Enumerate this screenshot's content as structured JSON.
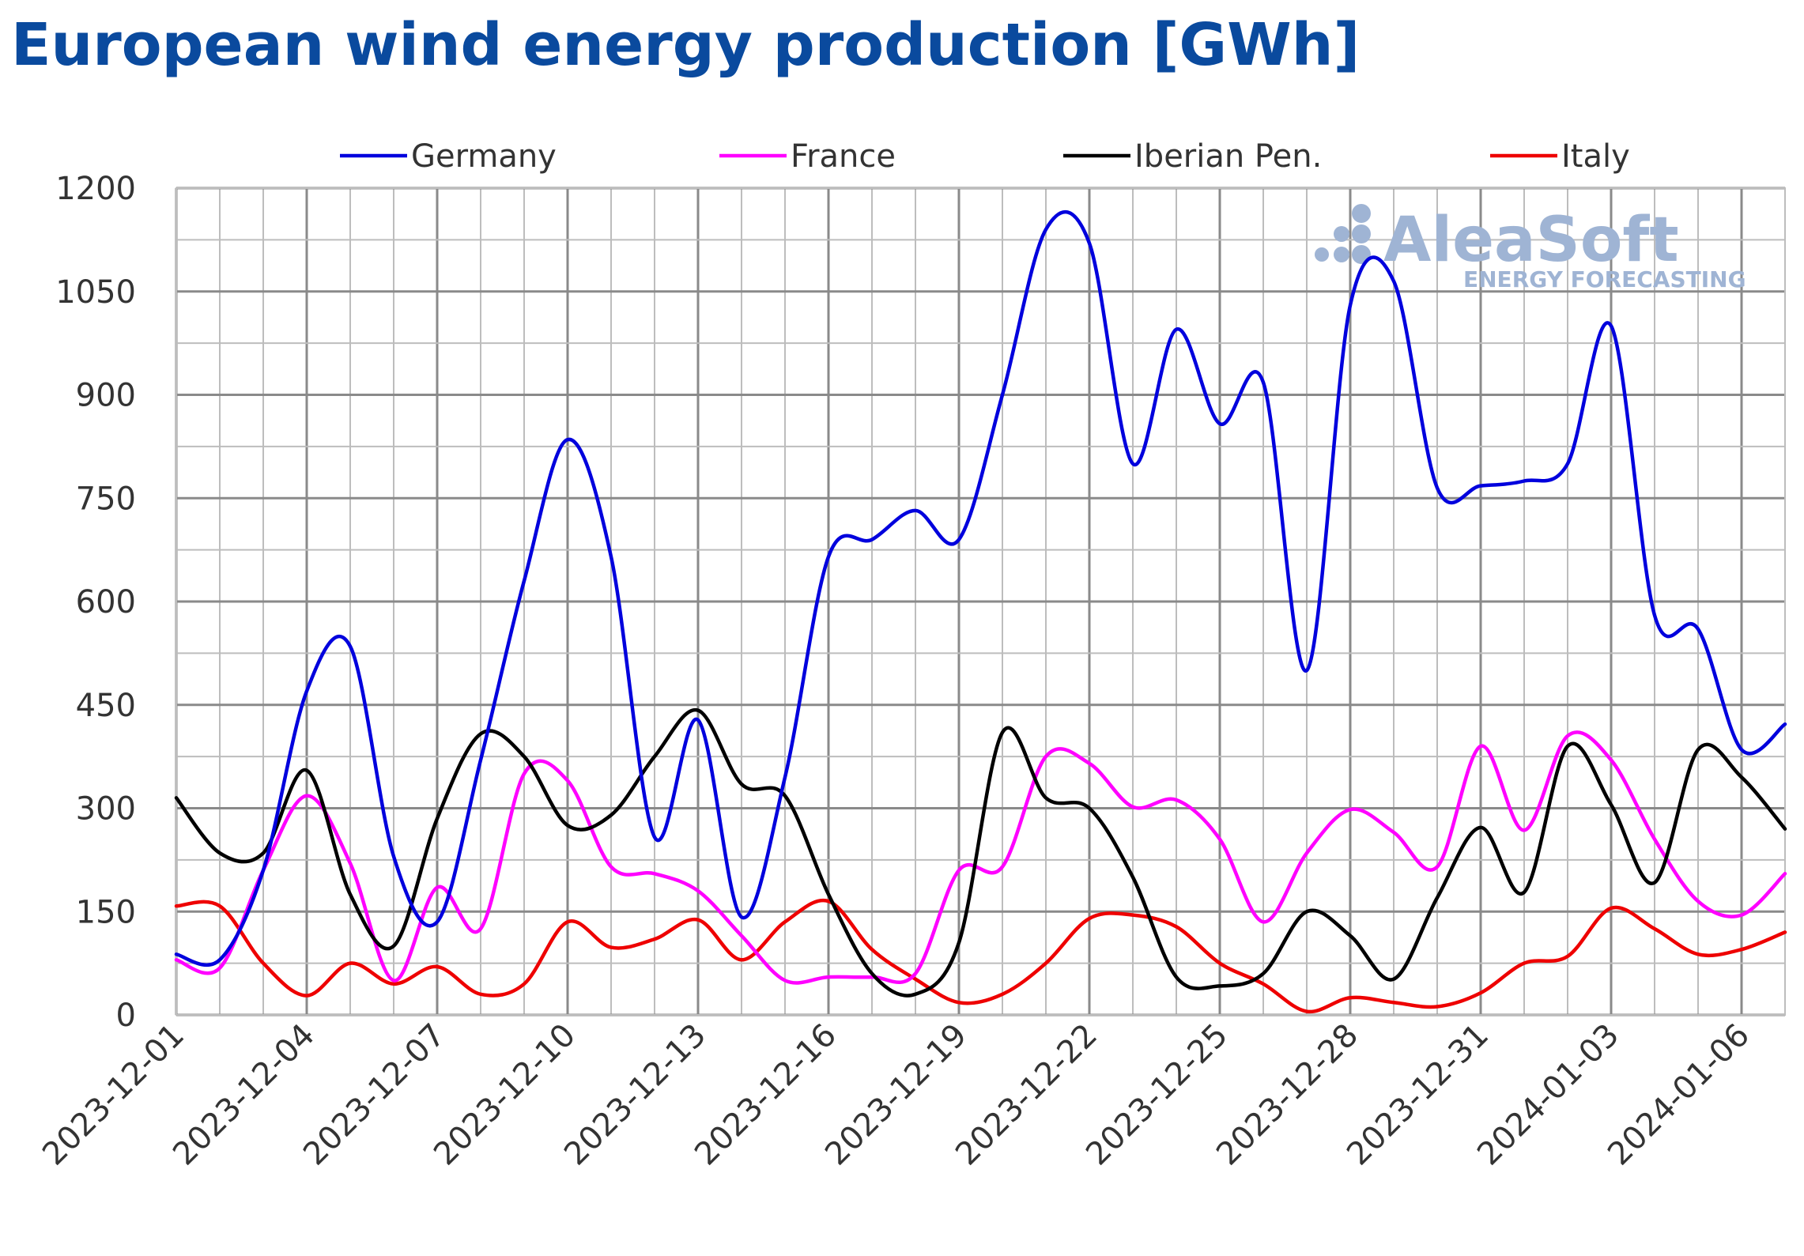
{
  "chart_data": {
    "type": "line",
    "title": "European wind energy production [GWh]",
    "xlabel": "",
    "ylabel": "",
    "ylim": [
      0,
      1200
    ],
    "yticks": [
      0,
      150,
      300,
      450,
      600,
      750,
      900,
      1050,
      1200
    ],
    "grid": true,
    "legend_position": "top",
    "x": [
      "2023-12-01",
      "2023-12-02",
      "2023-12-03",
      "2023-12-04",
      "2023-12-05",
      "2023-12-06",
      "2023-12-07",
      "2023-12-08",
      "2023-12-09",
      "2023-12-10",
      "2023-12-11",
      "2023-12-12",
      "2023-12-13",
      "2023-12-14",
      "2023-12-15",
      "2023-12-16",
      "2023-12-17",
      "2023-12-18",
      "2023-12-19",
      "2023-12-20",
      "2023-12-21",
      "2023-12-22",
      "2023-12-23",
      "2023-12-24",
      "2023-12-25",
      "2023-12-26",
      "2023-12-27",
      "2023-12-28",
      "2023-12-29",
      "2023-12-30",
      "2023-12-31",
      "2024-01-01",
      "2024-01-02",
      "2024-01-03",
      "2024-01-04",
      "2024-01-05",
      "2024-01-06",
      "2024-01-07"
    ],
    "x_tick_labels": [
      "2023-12-01",
      "2023-12-04",
      "2023-12-07",
      "2023-12-10",
      "2023-12-13",
      "2023-12-16",
      "2023-12-19",
      "2023-12-22",
      "2023-12-25",
      "2023-12-28",
      "2023-12-31",
      "2024-01-03",
      "2024-01-06"
    ],
    "series": [
      {
        "name": "Germany",
        "color": "#0000dd",
        "values": [
          88,
          80,
          210,
          470,
          535,
          230,
          135,
          370,
          630,
          835,
          665,
          258,
          428,
          142,
          345,
          665,
          690,
          732,
          690,
          900,
          1140,
          1120,
          800,
          995,
          858,
          918,
          500,
          1030,
          1065,
          765,
          768,
          775,
          800,
          1000,
          580,
          560,
          385,
          422
        ]
      },
      {
        "name": "France",
        "color": "#ff00ff",
        "values": [
          80,
          68,
          210,
          318,
          220,
          50,
          185,
          125,
          350,
          340,
          215,
          205,
          180,
          115,
          50,
          55,
          55,
          60,
          210,
          215,
          375,
          365,
          302,
          312,
          255,
          135,
          235,
          298,
          265,
          215,
          390,
          268,
          405,
          370,
          255,
          165,
          145,
          205
        ]
      },
      {
        "name": "Iberian Pen.",
        "color": "#000000",
        "values": [
          315,
          235,
          235,
          355,
          175,
          100,
          285,
          408,
          375,
          275,
          290,
          375,
          442,
          335,
          318,
          175,
          60,
          30,
          105,
          410,
          315,
          300,
          200,
          55,
          42,
          60,
          150,
          115,
          52,
          170,
          272,
          178,
          390,
          305,
          192,
          385,
          345,
          270
        ]
      },
      {
        "name": "Italy",
        "color": "#ee0000",
        "values": [
          158,
          158,
          75,
          28,
          75,
          45,
          70,
          30,
          45,
          135,
          98,
          110,
          138,
          80,
          135,
          165,
          95,
          52,
          18,
          30,
          75,
          140,
          145,
          128,
          75,
          45,
          5,
          25,
          18,
          12,
          32,
          75,
          85,
          155,
          125,
          88,
          95,
          120
        ]
      }
    ]
  },
  "watermark": {
    "brand": "AleaSoft",
    "tagline": "ENERGY FORECASTING"
  }
}
